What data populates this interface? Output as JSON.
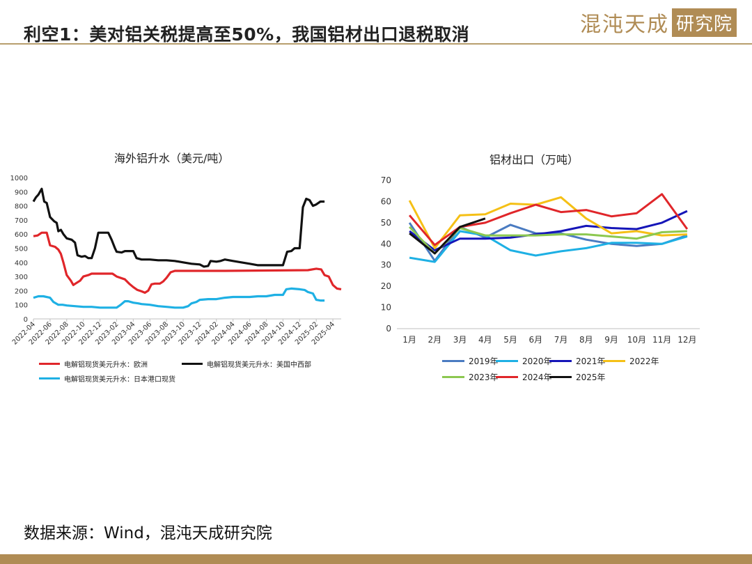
{
  "header": {
    "title": "利空1：美对铝关税提高至50%，我国铝材出口退税取消",
    "logo_text": "混沌天成",
    "logo_box": "研究院"
  },
  "footer": {
    "source": "数据来源：Wind，混沌天成研究院"
  },
  "colors": {
    "accent": "#b08c55"
  },
  "chart_data": [
    {
      "type": "line",
      "title": "海外铝升水（美元/吨）",
      "ylim": [
        0,
        1000
      ],
      "yticks": [
        0,
        100,
        200,
        300,
        400,
        500,
        600,
        700,
        800,
        900,
        1000
      ],
      "xticks": [
        "2022-04",
        "2022-06",
        "2022-08",
        "2022-10",
        "2022-12",
        "2023-02",
        "2023-04",
        "2023-06",
        "2023-08",
        "2023-10",
        "2023-12",
        "2024-02",
        "2024-04",
        "2024-06",
        "2024-08",
        "2024-10",
        "2024-12",
        "2025-02",
        "2025-04"
      ],
      "x_start": "2022-04",
      "x_end": "2025-05",
      "series": [
        {
          "name": "电解铝现货美元升水：欧洲",
          "color": "#e0262a",
          "points": [
            [
              0,
              585
            ],
            [
              0.5,
              590
            ],
            [
              1,
              610
            ],
            [
              1.6,
              610
            ],
            [
              2,
              520
            ],
            [
              2.6,
              510
            ],
            [
              3,
              490
            ],
            [
              3.3,
              460
            ],
            [
              3.6,
              400
            ],
            [
              4,
              310
            ],
            [
              4.5,
              270
            ],
            [
              4.8,
              240
            ],
            [
              5.2,
              255
            ],
            [
              5.6,
              270
            ],
            [
              6,
              300
            ],
            [
              6.6,
              310
            ],
            [
              7,
              320
            ],
            [
              8,
              320
            ],
            [
              9,
              320
            ],
            [
              9.5,
              320
            ],
            [
              10,
              300
            ],
            [
              11,
              280
            ],
            [
              11.5,
              250
            ],
            [
              12,
              225
            ],
            [
              12.5,
              205
            ],
            [
              13,
              195
            ],
            [
              13.4,
              185
            ],
            [
              13.8,
              200
            ],
            [
              14.2,
              245
            ],
            [
              14.6,
              250
            ],
            [
              15.2,
              250
            ],
            [
              15.6,
              265
            ],
            [
              16,
              290
            ],
            [
              16.5,
              330
            ],
            [
              17,
              340
            ],
            [
              18,
              340
            ],
            [
              19,
              340
            ],
            [
              20,
              340
            ],
            [
              21,
              340
            ],
            [
              22,
              340
            ],
            [
              23,
              340
            ],
            [
              33,
              345
            ],
            [
              34,
              355
            ],
            [
              34.6,
              350
            ],
            [
              35,
              310
            ],
            [
              35.5,
              300
            ],
            [
              36,
              240
            ],
            [
              36.5,
              215
            ],
            [
              37,
              210
            ]
          ]
        },
        {
          "name": "电解铝现货美元升水：美国中西部",
          "color": "#111111",
          "points": [
            [
              0,
              830
            ],
            [
              0.3,
              860
            ],
            [
              0.6,
              880
            ],
            [
              1,
              920
            ],
            [
              1.3,
              830
            ],
            [
              1.6,
              820
            ],
            [
              2,
              720
            ],
            [
              2.5,
              690
            ],
            [
              2.8,
              680
            ],
            [
              3,
              620
            ],
            [
              3.3,
              630
            ],
            [
              3.6,
              600
            ],
            [
              4,
              570
            ],
            [
              4.6,
              560
            ],
            [
              5,
              540
            ],
            [
              5.3,
              450
            ],
            [
              5.8,
              440
            ],
            [
              6.2,
              445
            ],
            [
              6.6,
              430
            ],
            [
              7,
              430
            ],
            [
              7.4,
              500
            ],
            [
              7.8,
              610
            ],
            [
              8.2,
              610
            ],
            [
              9,
              610
            ],
            [
              9.4,
              560
            ],
            [
              9.8,
              500
            ],
            [
              10,
              475
            ],
            [
              10.6,
              470
            ],
            [
              11,
              480
            ],
            [
              12,
              480
            ],
            [
              12.4,
              430
            ],
            [
              13,
              420
            ],
            [
              14,
              420
            ],
            [
              15,
              415
            ],
            [
              16,
              415
            ],
            [
              17,
              410
            ],
            [
              18,
              400
            ],
            [
              19,
              390
            ],
            [
              20,
              385
            ],
            [
              20.5,
              370
            ],
            [
              21,
              375
            ],
            [
              21.3,
              410
            ],
            [
              22,
              405
            ],
            [
              22.5,
              410
            ],
            [
              23,
              420
            ],
            [
              24,
              410
            ],
            [
              25,
              400
            ],
            [
              26,
              390
            ],
            [
              27,
              380
            ],
            [
              28,
              380
            ],
            [
              29,
              380
            ],
            [
              30,
              380
            ],
            [
              30.5,
              475
            ],
            [
              31,
              480
            ],
            [
              31.4,
              500
            ],
            [
              32,
              500
            ],
            [
              32.4,
              790
            ],
            [
              32.8,
              850
            ],
            [
              33.2,
              840
            ],
            [
              33.6,
              800
            ],
            [
              34,
              810
            ],
            [
              34.5,
              830
            ],
            [
              35,
              830
            ]
          ]
        },
        {
          "name": "电解铝现货美元升水：日本港口现货",
          "color": "#1eb0e4",
          "points": [
            [
              0,
              150
            ],
            [
              0.6,
              160
            ],
            [
              1.2,
              160
            ],
            [
              2,
              150
            ],
            [
              2.4,
              120
            ],
            [
              3,
              100
            ],
            [
              3.5,
              100
            ],
            [
              4,
              95
            ],
            [
              5,
              90
            ],
            [
              6,
              85
            ],
            [
              7,
              85
            ],
            [
              8,
              80
            ],
            [
              9,
              80
            ],
            [
              10,
              80
            ],
            [
              10.5,
              100
            ],
            [
              11,
              125
            ],
            [
              11.4,
              125
            ],
            [
              12,
              115
            ],
            [
              12.6,
              110
            ],
            [
              13,
              105
            ],
            [
              14,
              100
            ],
            [
              15,
              90
            ],
            [
              16,
              85
            ],
            [
              17,
              80
            ],
            [
              18,
              80
            ],
            [
              18.6,
              90
            ],
            [
              19,
              110
            ],
            [
              19.6,
              120
            ],
            [
              20,
              135
            ],
            [
              21,
              140
            ],
            [
              22,
              140
            ],
            [
              23,
              150
            ],
            [
              24,
              155
            ],
            [
              25,
              155
            ],
            [
              26,
              155
            ],
            [
              27,
              160
            ],
            [
              28,
              160
            ],
            [
              29,
              170
            ],
            [
              30,
              170
            ],
            [
              30.4,
              210
            ],
            [
              31,
              215
            ],
            [
              32,
              210
            ],
            [
              32.6,
              205
            ],
            [
              33,
              190
            ],
            [
              33.6,
              180
            ],
            [
              34,
              135
            ],
            [
              34.5,
              130
            ],
            [
              35,
              130
            ]
          ]
        }
      ]
    },
    {
      "type": "line",
      "title": "铝材出口（万吨）",
      "categories": [
        "1月",
        "2月",
        "3月",
        "4月",
        "5月",
        "6月",
        "7月",
        "8月",
        "9月",
        "10月",
        "11月",
        "12月"
      ],
      "ylim": [
        0,
        70
      ],
      "yticks": [
        0,
        10,
        20,
        30,
        40,
        50,
        60,
        70
      ],
      "series": [
        {
          "name": "2019年",
          "color": "#4a7bc1",
          "values": [
            50,
            32,
            48,
            43,
            49,
            45,
            45,
            42,
            40,
            39,
            40,
            44
          ]
        },
        {
          "name": "2020年",
          "color": "#1eb0e4",
          "values": [
            33.5,
            31.5,
            46,
            44,
            37,
            34.5,
            36.5,
            38,
            40.5,
            40.5,
            40,
            43.5
          ]
        },
        {
          "name": "2021年",
          "color": "#1515b8",
          "values": [
            46,
            37,
            42.5,
            42.5,
            43,
            44.5,
            46,
            48.5,
            47.5,
            47,
            50,
            55.5
          ]
        },
        {
          "name": "2022年",
          "color": "#f5c016",
          "values": [
            60.5,
            38,
            53.5,
            54,
            59,
            58.5,
            62,
            52,
            45,
            46,
            44,
            44.5
          ]
        },
        {
          "name": "2023年",
          "color": "#8cc850",
          "values": [
            48,
            35.5,
            47.5,
            44,
            44,
            44,
            44.5,
            44.5,
            43.5,
            42.5,
            45.5,
            46
          ]
        },
        {
          "name": "2024年",
          "color": "#e0262a",
          "values": [
            53.5,
            39.5,
            48,
            50,
            54.5,
            58.5,
            55,
            56,
            53,
            54.5,
            63.5,
            47
          ]
        },
        {
          "name": "2025年",
          "color": "#111111",
          "values": [
            45,
            35.5,
            48,
            52,
            null,
            null,
            null,
            null,
            null,
            null,
            null,
            null
          ]
        }
      ]
    }
  ]
}
